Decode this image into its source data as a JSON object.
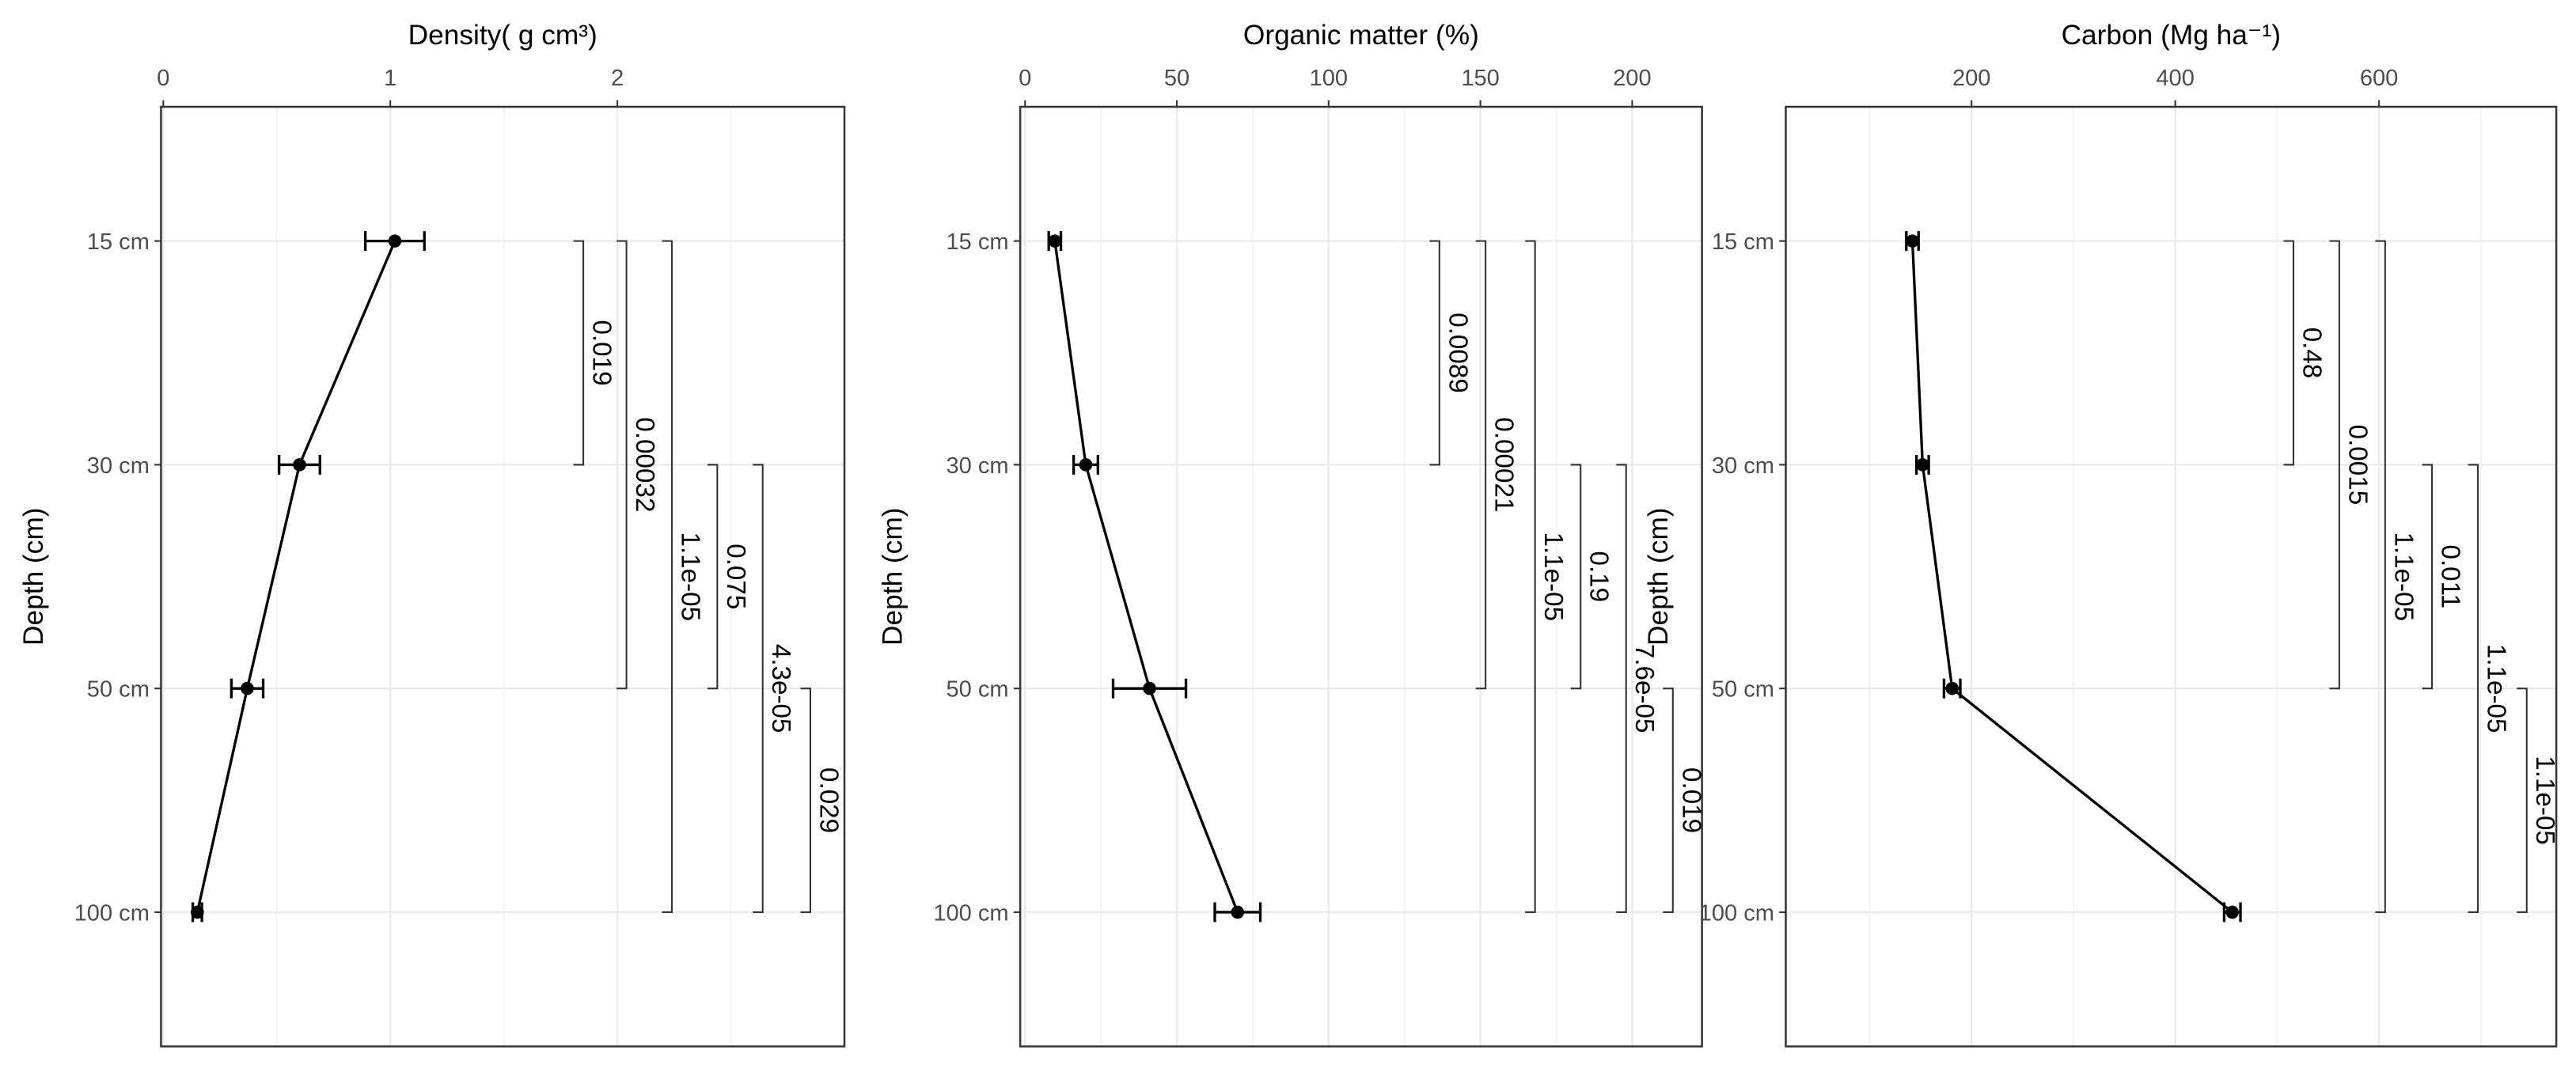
{
  "chart_data": [
    {
      "type": "line",
      "title": "Density( g cm³)",
      "y_label": "Depth (cm)",
      "categories": [
        "15 cm",
        "30 cm",
        "50 cm",
        "100 cm"
      ],
      "values": [
        1.02,
        0.6,
        0.37,
        0.15
      ],
      "errors": [
        0.13,
        0.09,
        0.07,
        0.02
      ],
      "color": "#000000",
      "xlim": [
        -0.01,
        3.0
      ],
      "xticks": [
        0,
        1,
        2
      ],
      "minor_xticks": [
        0.5,
        1.5,
        2.5
      ],
      "grid": true,
      "comparisons": [
        {
          "from": "15 cm",
          "to": "30 cm",
          "x": 1.85,
          "label": "0.019"
        },
        {
          "from": "15 cm",
          "to": "50 cm",
          "x": 2.04,
          "label": "0.00032"
        },
        {
          "from": "15 cm",
          "to": "100 cm",
          "x": 2.24,
          "label": "1.1e-05"
        },
        {
          "from": "30 cm",
          "to": "50 cm",
          "x": 2.44,
          "label": "0.075"
        },
        {
          "from": "30 cm",
          "to": "100 cm",
          "x": 2.64,
          "label": "4.3e-05"
        },
        {
          "from": "50 cm",
          "to": "100 cm",
          "x": 2.85,
          "label": "0.029"
        }
      ]
    },
    {
      "type": "line",
      "title": "Organic matter (%)",
      "y_label": "Depth (cm)",
      "categories": [
        "15 cm",
        "30 cm",
        "50 cm",
        "100 cm"
      ],
      "values": [
        9.8,
        20,
        41,
        70
      ],
      "errors": [
        2,
        4,
        12,
        7.5
      ],
      "color": "#000000",
      "xlim": [
        -1.6,
        223
      ],
      "xticks": [
        0,
        50,
        100,
        150,
        200
      ],
      "minor_xticks": [
        25,
        75,
        125,
        175
      ],
      "grid": true,
      "comparisons": [
        {
          "from": "15 cm",
          "to": "30 cm",
          "x": 136.5,
          "label": "0.0089"
        },
        {
          "from": "15 cm",
          "to": "50 cm",
          "x": 151.7,
          "label": "0.00021"
        },
        {
          "from": "15 cm",
          "to": "100 cm",
          "x": 168,
          "label": "1.1e-05"
        },
        {
          "from": "30 cm",
          "to": "50 cm",
          "x": 183,
          "label": "0.19"
        },
        {
          "from": "30 cm",
          "to": "100 cm",
          "x": 198,
          "label": "7.6e-05"
        },
        {
          "from": "50 cm",
          "to": "100 cm",
          "x": 213.4,
          "label": "0.019"
        }
      ]
    },
    {
      "type": "line",
      "title": "Carbon (Mg ha⁻¹)",
      "y_label": "Depth (cm)",
      "categories": [
        "15 cm",
        "30 cm",
        "50 cm",
        "100 cm"
      ],
      "values": [
        142,
        152,
        181,
        456
      ],
      "errors": [
        6,
        6,
        8,
        8
      ],
      "color": "#000000",
      "xlim": [
        17.7,
        774
      ],
      "xticks": [
        200,
        400,
        600
      ],
      "minor_xticks": [
        100,
        300,
        500,
        700
      ],
      "grid": true,
      "comparisons": [
        {
          "from": "15 cm",
          "to": "30 cm",
          "x": 516,
          "label": "0.48"
        },
        {
          "from": "15 cm",
          "to": "50 cm",
          "x": 561,
          "label": "0.0015"
        },
        {
          "from": "15 cm",
          "to": "100 cm",
          "x": 606,
          "label": "1.1e-05"
        },
        {
          "from": "30 cm",
          "to": "50 cm",
          "x": 652,
          "label": "0.011"
        },
        {
          "from": "30 cm",
          "to": "100 cm",
          "x": 697,
          "label": "1.1e-05"
        },
        {
          "from": "50 cm",
          "to": "100 cm",
          "x": 745,
          "label": "1.1e-05"
        }
      ]
    }
  ]
}
